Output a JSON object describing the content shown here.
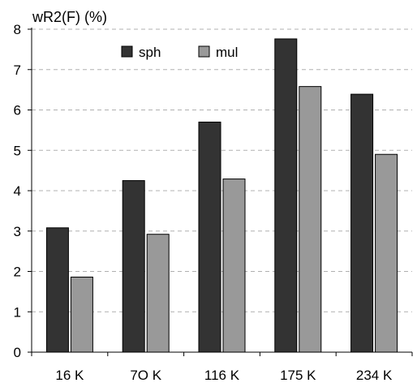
{
  "chart_data": {
    "type": "bar",
    "title": "",
    "ylabel": "wR2(F) (%)",
    "xlabel": "",
    "categories": [
      "16 K",
      "7O K",
      "116 K",
      "175 K",
      "234 K"
    ],
    "series": [
      {
        "name": "sph",
        "values": [
          3.08,
          4.25,
          5.7,
          7.76,
          6.39
        ],
        "color": "#333333"
      },
      {
        "name": "mul",
        "values": [
          1.86,
          2.92,
          4.29,
          6.58,
          4.9
        ],
        "color": "#999999"
      }
    ],
    "ylim": [
      0,
      8
    ],
    "yticks": [
      0,
      1,
      2,
      3,
      4,
      5,
      6,
      7,
      8
    ],
    "grid": true,
    "grid_style": "dashed",
    "legend_position": "top"
  }
}
